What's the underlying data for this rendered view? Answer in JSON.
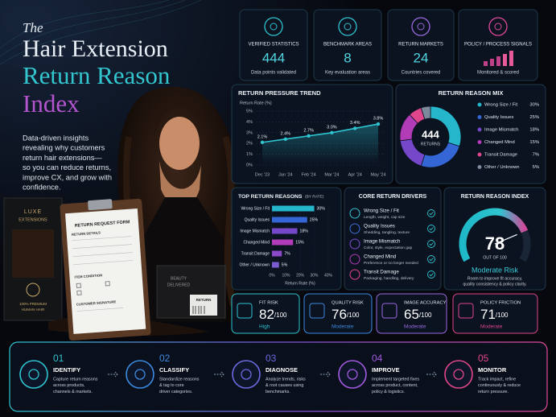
{
  "header": {
    "pre_title": "The",
    "title_lines": [
      "Hair Extension",
      "Return Reason",
      "Index"
    ],
    "description_lines": [
      "Data-driven insights",
      "revealing why customers",
      "return hair extensions—",
      "so you can reduce returns,",
      "improve CX, and grow with",
      "confidence."
    ]
  },
  "illustration": {
    "box_brand": [
      "LUXE",
      "EXTENSIONS"
    ],
    "box_tagline": [
      "100% PREMIUM",
      "HUMAN HAIR"
    ],
    "form_title": "RETURN REQUEST FORM",
    "form_section": "RETURN DETAILS",
    "form_condition": "ITEM CONDITION",
    "form_signature": "CUSTOMER SIGNATURE",
    "parcel_label": [
      "BEAUTY",
      "DELIVERED"
    ],
    "return_tag": "RETURN"
  },
  "stats": [
    {
      "label": "VERIFIED STATISTICS",
      "value": "444",
      "caption": "Data points validated"
    },
    {
      "label": "BENCHMARK AREAS",
      "value": "8",
      "caption": "Key evaluation areas"
    },
    {
      "label": "RETURN MARKETS",
      "value": "24",
      "caption": "Countries covered"
    },
    {
      "label": "POLICY / PROCESS SIGNALS",
      "caption": "Monitored & scored"
    }
  ],
  "chart_data": [
    {
      "type": "line",
      "title": "RETURN PRESSURE TREND",
      "y_label": "Return Rate (%)",
      "categories": [
        "Dec '23",
        "Jan '24",
        "Feb '24",
        "Mar '24",
        "Apr '24",
        "May '24"
      ],
      "values": [
        2.1,
        2.4,
        2.7,
        3.0,
        3.4,
        3.8
      ],
      "value_labels": [
        "2.1%",
        "2.4%",
        "2.7%",
        "3.0%",
        "3.4%",
        "3.8%"
      ],
      "color": "#2ec4d0",
      "ylim": [
        0,
        5
      ],
      "yticks": [
        {
          "value": 0,
          "label": "0%"
        },
        {
          "value": 1,
          "label": "1%"
        },
        {
          "value": 2,
          "label": "2%"
        },
        {
          "value": 3,
          "label": "3%"
        },
        {
          "value": 4,
          "label": "4%"
        },
        {
          "value": 5,
          "label": "5%"
        }
      ],
      "grid": true
    },
    {
      "type": "donut",
      "title": "RETURN REASON MIX",
      "center_value": "444",
      "center_label": "RETURNS",
      "categories": [
        "Wrong Size / Fit",
        "Quality Issues",
        "Image Mismatch",
        "Changed Mind",
        "Transit Damage",
        "Other / Unknown"
      ],
      "values": [
        30,
        25,
        18,
        15,
        7,
        5
      ],
      "value_labels": [
        "30%",
        "25%",
        "18%",
        "15%",
        "7%",
        "5%"
      ],
      "colors": [
        "#26b6cc",
        "#3566d6",
        "#7448c8",
        "#b23cb8",
        "#e0468c",
        "#7c8a9c"
      ]
    },
    {
      "type": "hbar",
      "title": "TOP RETURN REASONS",
      "subtitle": "(BY RATE)",
      "x_label": "Return Rate (%)",
      "categories": [
        "Wrong Size / Fit",
        "Quality Issues",
        "Image Mismatch",
        "Changed Mind",
        "Transit Damage",
        "Other / Unknown"
      ],
      "values": [
        30,
        25,
        18,
        15,
        7,
        5
      ],
      "value_labels": [
        "30%",
        "25%",
        "18%",
        "15%",
        "7%",
        "5%"
      ],
      "colors": [
        "#26b6cc",
        "#3566d6",
        "#7448c8",
        "#b23cb8",
        "#8a4ac8",
        "#7a5cd0"
      ],
      "xlim": [
        0,
        40
      ],
      "xticks": [
        {
          "value": 0,
          "label": "0%"
        },
        {
          "value": 10,
          "label": "10%"
        },
        {
          "value": 20,
          "label": "20%"
        },
        {
          "value": 30,
          "label": "30%"
        },
        {
          "value": 40,
          "label": "40%"
        }
      ]
    },
    {
      "type": "gauge",
      "title": "RETURN REASON INDEX",
      "value": 78,
      "ylim": [
        0,
        100
      ],
      "caption": "OUT OF 100",
      "rating": "Moderate Risk",
      "note_lines": [
        "Room to improve fit accuracy,",
        "quality consistency & policy clarity."
      ]
    }
  ],
  "drivers": {
    "title": "CORE RETURN DRIVERS",
    "items": [
      {
        "name": "Wrong Size / Fit",
        "detail": "Length, weight, cap size"
      },
      {
        "name": "Quality Issues",
        "detail": "Shedding, tangling, texture"
      },
      {
        "name": "Image Mismatch",
        "detail": "Color, style, expectation gap"
      },
      {
        "name": "Changed Mind",
        "detail": "Preference or no longer needed"
      },
      {
        "name": "Transit Damage",
        "detail": "Packaging, handling, delivery"
      }
    ]
  },
  "scores": [
    {
      "label": "FIT RISK",
      "value": 82,
      "max_label": "/100",
      "level": "High"
    },
    {
      "label": "QUALITY RISK",
      "value": 76,
      "max_label": "/100",
      "level": "Moderate"
    },
    {
      "label": "IMAGE ACCURACY",
      "value": 65,
      "max_label": "/100",
      "level": "Moderate"
    },
    {
      "label": "POLICY FRICTION",
      "value": 71,
      "max_label": "/100",
      "level": "Moderate"
    }
  ],
  "steps": [
    {
      "number": "01",
      "name": "IDENTIFY",
      "lines": [
        "Capture return reasons",
        "across products,",
        "channels & markets."
      ]
    },
    {
      "number": "02",
      "name": "CLASSIFY",
      "lines": [
        "Standardize reasons",
        "& tag to core",
        "driver categories."
      ]
    },
    {
      "number": "03",
      "name": "DIAGNOSE",
      "lines": [
        "Analyze trends, risks",
        "& root causes using",
        "benchmarks."
      ]
    },
    {
      "number": "04",
      "name": "IMPROVE",
      "lines": [
        "Implement targeted fixes",
        "across product, content,",
        "policy & logistics."
      ]
    },
    {
      "number": "05",
      "name": "MONITOR",
      "lines": [
        "Track impact, refine",
        "continuously & reduce",
        "return pressure."
      ]
    }
  ]
}
